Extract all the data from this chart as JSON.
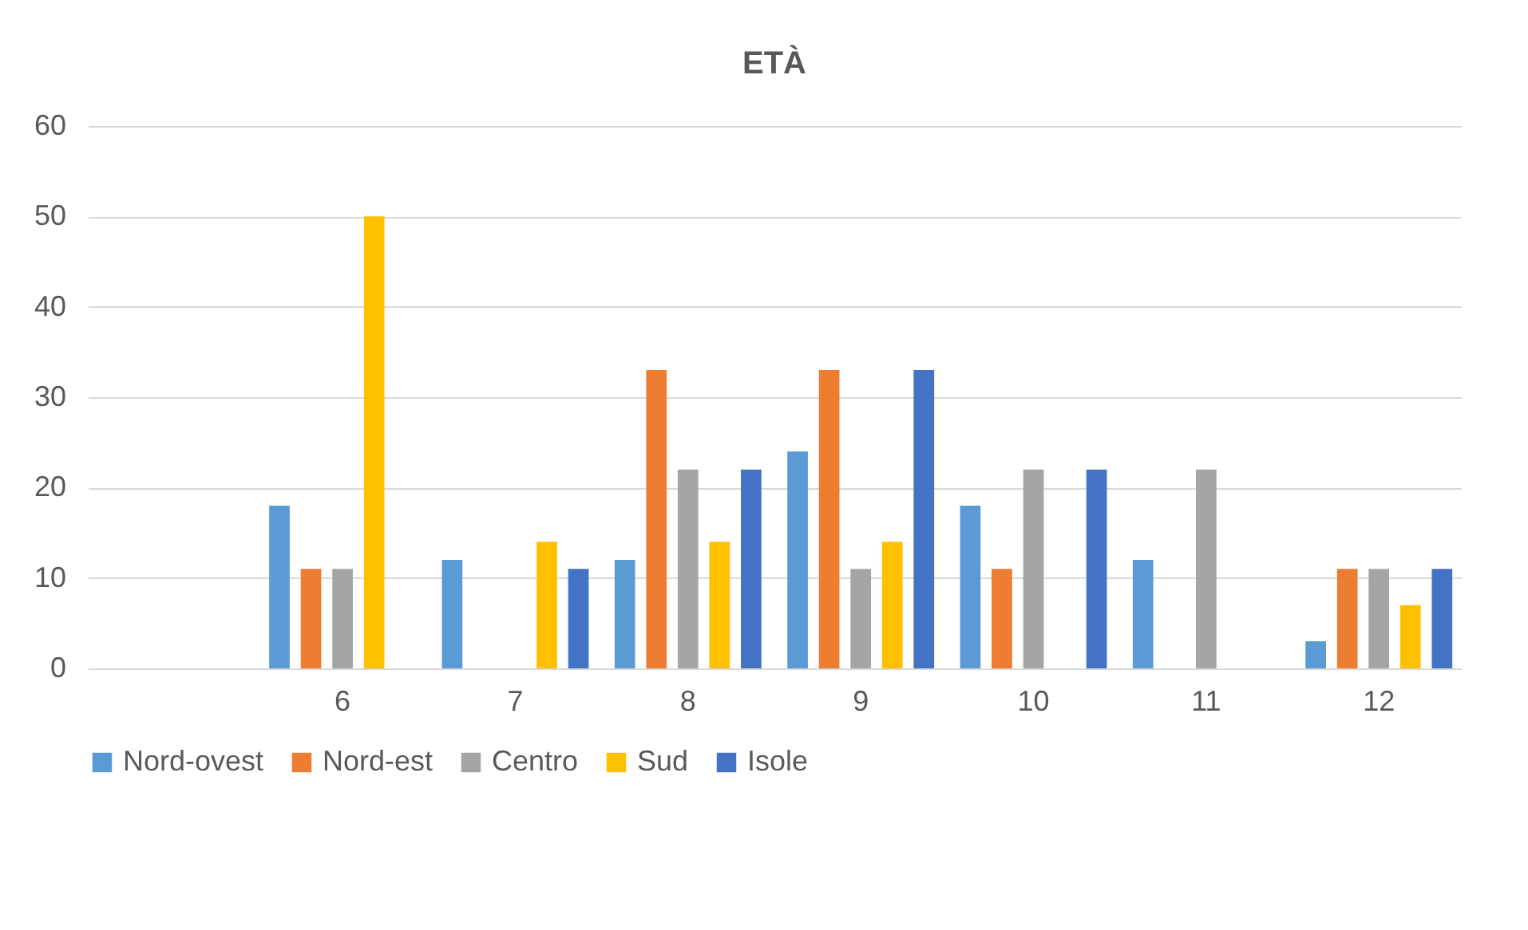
{
  "chart_data": {
    "type": "bar",
    "title": "ETÀ",
    "categories": [
      null,
      "6",
      "7",
      "8",
      "9",
      "10",
      "11",
      "12"
    ],
    "series": [
      {
        "name": "Nord-ovest",
        "color": "#5b9bd5",
        "values": [
          null,
          18,
          12,
          12,
          24,
          18,
          12,
          3
        ]
      },
      {
        "name": "Nord-est",
        "color": "#ed7d31",
        "values": [
          null,
          11,
          null,
          33,
          33,
          11,
          null,
          11
        ]
      },
      {
        "name": "Centro",
        "color": "#a5a5a5",
        "values": [
          null,
          11,
          null,
          22,
          11,
          22,
          22,
          11
        ]
      },
      {
        "name": "Sud",
        "color": "#ffc000",
        "values": [
          null,
          50,
          14,
          14,
          14,
          null,
          null,
          7
        ]
      },
      {
        "name": "Isole",
        "color": "#4472c4",
        "values": [
          null,
          null,
          11,
          22,
          33,
          22,
          null,
          11
        ]
      }
    ],
    "ylim": [
      0,
      60
    ],
    "yticks": [
      0,
      10,
      20,
      30,
      40,
      50,
      60
    ],
    "grid": "y",
    "legend": "bottom"
  }
}
